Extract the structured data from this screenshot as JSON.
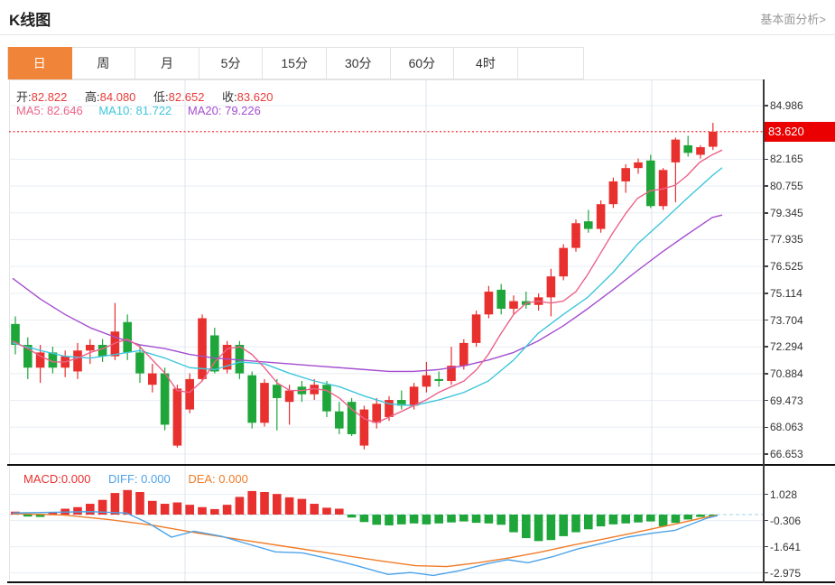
{
  "header": {
    "title": "K线图",
    "link": "基本面分析>"
  },
  "tabs": {
    "items": [
      "日",
      "周",
      "月",
      "5分",
      "15分",
      "30分",
      "60分",
      "4时"
    ],
    "selected": "日"
  },
  "overlay": {
    "ohlc": [
      {
        "label": "开:",
        "value": "82.822"
      },
      {
        "label": "高:",
        "value": "84.080"
      },
      {
        "label": "低:",
        "value": "82.652"
      },
      {
        "label": "收:",
        "value": "83.620"
      }
    ],
    "ma": [
      {
        "label": "MA5:",
        "value": "82.646"
      },
      {
        "label": "MA10:",
        "value": "81.722"
      },
      {
        "label": "MA20:",
        "value": "79.226"
      }
    ],
    "macd": [
      {
        "label": "MACD:",
        "value": "0.000"
      },
      {
        "label": "DIFF:",
        "value": "0.000"
      },
      {
        "label": "DEA:",
        "value": "0.000"
      }
    ]
  },
  "axis": {
    "main_labels": [
      "84.986",
      "82.165",
      "80.755",
      "79.345",
      "77.935",
      "76.525",
      "75.114",
      "73.704",
      "72.294",
      "70.884",
      "69.473",
      "68.063",
      "66.653"
    ],
    "current_price": "83.620",
    "macd_labels": [
      "1.028",
      "-0.306",
      "-1.641",
      "-2.975"
    ]
  },
  "colors": {
    "up": "#e8302e",
    "down": "#1fa63a",
    "tab_accent": "#f0853a",
    "ma5": "#ec6289",
    "ma10": "#3fc6dc",
    "ma20": "#a44ecf",
    "diff": "#4da3e8",
    "dea": "#f07c28",
    "value_red": "#e83a3a",
    "badge": "#ea0000",
    "grid": "#e8edf4",
    "vgrid": "#dce4ec",
    "zero_dash": "#c2e4ee",
    "price_line": "#f25050"
  },
  "chart_data": {
    "type": "candlestick+macd",
    "title": "K线图 daily candles",
    "main": {
      "ylim": [
        66.653,
        84.986
      ],
      "yticks": [
        84.986,
        83.62,
        82.165,
        80.755,
        79.345,
        77.935,
        76.525,
        75.114,
        73.704,
        72.294,
        70.884,
        69.473,
        68.063,
        66.653
      ],
      "current_price": 83.62,
      "ohlc_display": {
        "open": 82.822,
        "high": 84.08,
        "low": 82.652,
        "close": 83.62
      },
      "ma_display": {
        "ma5": 82.646,
        "ma10": 81.722,
        "ma20": 79.226
      },
      "candles": [
        [
          73.5,
          73.9,
          71.9,
          72.4
        ],
        [
          72.4,
          72.8,
          70.6,
          71.2
        ],
        [
          71.2,
          72.4,
          70.4,
          72.0
        ],
        [
          72.0,
          72.3,
          70.9,
          71.2
        ],
        [
          71.2,
          72.1,
          70.7,
          71.8
        ],
        [
          71.0,
          72.5,
          70.6,
          72.1
        ],
        [
          72.1,
          72.7,
          71.4,
          72.4
        ],
        [
          72.4,
          72.7,
          71.5,
          71.8
        ],
        [
          71.8,
          74.6,
          71.6,
          73.1
        ],
        [
          73.6,
          74.0,
          71.6,
          72.0
        ],
        [
          72.0,
          72.4,
          70.4,
          70.9
        ],
        [
          70.3,
          71.4,
          69.9,
          70.9
        ],
        [
          70.9,
          71.2,
          67.9,
          68.2
        ],
        [
          67.1,
          70.3,
          67.0,
          70.1
        ],
        [
          69.0,
          70.9,
          68.8,
          70.6
        ],
        [
          70.6,
          74.0,
          70.5,
          73.8
        ],
        [
          72.9,
          73.3,
          70.9,
          71.0
        ],
        [
          71.1,
          72.6,
          70.9,
          72.4
        ],
        [
          72.4,
          72.6,
          70.6,
          70.9
        ],
        [
          70.8,
          71.0,
          68.0,
          68.3
        ],
        [
          68.3,
          70.6,
          68.1,
          70.4
        ],
        [
          70.3,
          70.6,
          67.9,
          69.6
        ],
        [
          69.4,
          70.3,
          68.2,
          70.0
        ],
        [
          70.2,
          70.5,
          69.4,
          69.8
        ],
        [
          69.8,
          70.6,
          69.5,
          70.3
        ],
        [
          70.3,
          70.5,
          68.6,
          68.9
        ],
        [
          68.9,
          69.4,
          67.7,
          68.0
        ],
        [
          69.4,
          69.6,
          67.6,
          67.7
        ],
        [
          67.1,
          69.2,
          66.9,
          69.0
        ],
        [
          68.3,
          69.6,
          68.0,
          69.3
        ],
        [
          68.6,
          69.7,
          68.4,
          69.5
        ],
        [
          69.5,
          70.0,
          69.0,
          69.2
        ],
        [
          69.2,
          70.4,
          69.0,
          70.2
        ],
        [
          70.2,
          71.5,
          69.9,
          70.8
        ],
        [
          70.6,
          71.0,
          70.2,
          70.5
        ],
        [
          70.5,
          72.3,
          70.3,
          71.3
        ],
        [
          71.3,
          72.7,
          71.1,
          72.5
        ],
        [
          72.5,
          74.2,
          72.3,
          74.0
        ],
        [
          74.0,
          75.5,
          73.8,
          75.2
        ],
        [
          75.3,
          75.6,
          74.0,
          74.3
        ],
        [
          74.3,
          75.0,
          74.0,
          74.7
        ],
        [
          74.7,
          75.2,
          74.3,
          74.5
        ],
        [
          74.5,
          75.1,
          74.2,
          74.9
        ],
        [
          74.9,
          76.4,
          73.9,
          76.0
        ],
        [
          76.0,
          77.7,
          75.8,
          77.5
        ],
        [
          77.5,
          79.0,
          77.3,
          78.8
        ],
        [
          78.9,
          79.5,
          78.3,
          78.5
        ],
        [
          78.5,
          80.0,
          78.3,
          79.8
        ],
        [
          79.8,
          81.2,
          79.6,
          81.0
        ],
        [
          81.0,
          81.9,
          80.4,
          81.7
        ],
        [
          81.7,
          82.2,
          81.4,
          82.0
        ],
        [
          82.1,
          82.4,
          79.6,
          79.7
        ],
        [
          79.7,
          81.7,
          79.5,
          81.6
        ],
        [
          82.0,
          83.3,
          79.9,
          83.2
        ],
        [
          82.9,
          83.4,
          82.3,
          82.5
        ],
        [
          82.4,
          82.9,
          82.2,
          82.8
        ],
        [
          82.822,
          84.08,
          82.652,
          83.62
        ]
      ],
      "ma5": [
        [
          14,
          72.6
        ],
        [
          31,
          72.2
        ],
        [
          45,
          71.8
        ],
        [
          59,
          71.5
        ],
        [
          72,
          71.5
        ],
        [
          86,
          71.7
        ],
        [
          100,
          72.0
        ],
        [
          114,
          72.2
        ],
        [
          128,
          72.5
        ],
        [
          141,
          72.7
        ],
        [
          155,
          72.3
        ],
        [
          169,
          71.6
        ],
        [
          183,
          70.9
        ],
        [
          196,
          70.0
        ],
        [
          210,
          69.9
        ],
        [
          224,
          70.5
        ],
        [
          238,
          71.5
        ],
        [
          252,
          72.2
        ],
        [
          266,
          72.3
        ],
        [
          279,
          71.9
        ],
        [
          293,
          71.2
        ],
        [
          307,
          70.4
        ],
        [
          321,
          70.0
        ],
        [
          335,
          70.0
        ],
        [
          348,
          70.1
        ],
        [
          362,
          70.0
        ],
        [
          376,
          69.6
        ],
        [
          390,
          69.0
        ],
        [
          404,
          68.5
        ],
        [
          417,
          68.3
        ],
        [
          431,
          68.6
        ],
        [
          445,
          68.9
        ],
        [
          458,
          69.2
        ],
        [
          472,
          69.5
        ],
        [
          486,
          69.9
        ],
        [
          500,
          70.2
        ],
        [
          514,
          70.5
        ],
        [
          528,
          71.1
        ],
        [
          541,
          71.9
        ],
        [
          555,
          73.0
        ],
        [
          569,
          74.0
        ],
        [
          583,
          74.6
        ],
        [
          596,
          74.7
        ],
        [
          610,
          74.6
        ],
        [
          624,
          74.7
        ],
        [
          638,
          75.2
        ],
        [
          651,
          76.1
        ],
        [
          665,
          77.2
        ],
        [
          679,
          78.3
        ],
        [
          693,
          79.3
        ],
        [
          706,
          80.1
        ],
        [
          720,
          80.5
        ],
        [
          734,
          80.6
        ],
        [
          748,
          80.8
        ],
        [
          761,
          81.3
        ],
        [
          775,
          82.0
        ],
        [
          789,
          82.4
        ],
        [
          800,
          82.65
        ]
      ],
      "ma10": [
        [
          14,
          72.5
        ],
        [
          45,
          72.1
        ],
        [
          72,
          71.8
        ],
        [
          100,
          71.7
        ],
        [
          128,
          71.9
        ],
        [
          155,
          72.1
        ],
        [
          183,
          71.7
        ],
        [
          210,
          71.2
        ],
        [
          238,
          71.1
        ],
        [
          266,
          71.5
        ],
        [
          293,
          71.4
        ],
        [
          321,
          70.9
        ],
        [
          348,
          70.5
        ],
        [
          376,
          70.2
        ],
        [
          404,
          69.7
        ],
        [
          431,
          69.3
        ],
        [
          458,
          69.2
        ],
        [
          486,
          69.5
        ],
        [
          514,
          69.9
        ],
        [
          541,
          70.5
        ],
        [
          569,
          71.6
        ],
        [
          596,
          73.0
        ],
        [
          624,
          74.0
        ],
        [
          651,
          74.9
        ],
        [
          679,
          76.2
        ],
        [
          706,
          77.7
        ],
        [
          734,
          78.9
        ],
        [
          761,
          80.1
        ],
        [
          789,
          81.3
        ],
        [
          800,
          81.72
        ]
      ],
      "ma20": [
        [
          14,
          75.9
        ],
        [
          45,
          74.8
        ],
        [
          72,
          74.0
        ],
        [
          100,
          73.3
        ],
        [
          128,
          72.8
        ],
        [
          155,
          72.4
        ],
        [
          183,
          72.2
        ],
        [
          210,
          71.9
        ],
        [
          238,
          71.7
        ],
        [
          266,
          71.6
        ],
        [
          293,
          71.5
        ],
        [
          321,
          71.4
        ],
        [
          348,
          71.3
        ],
        [
          376,
          71.2
        ],
        [
          404,
          71.1
        ],
        [
          431,
          71.0
        ],
        [
          458,
          71.0
        ],
        [
          486,
          71.1
        ],
        [
          514,
          71.3
        ],
        [
          541,
          71.6
        ],
        [
          569,
          72.0
        ],
        [
          596,
          72.6
        ],
        [
          624,
          73.4
        ],
        [
          651,
          74.3
        ],
        [
          679,
          75.3
        ],
        [
          706,
          76.3
        ],
        [
          734,
          77.3
        ],
        [
          761,
          78.2
        ],
        [
          789,
          79.1
        ],
        [
          800,
          79.23
        ]
      ]
    },
    "macd": {
      "ylim": [
        -3.3,
        1.4
      ],
      "yticks": [
        1.028,
        -0.306,
        -1.641,
        -2.975
      ],
      "display": {
        "macd": 0.0,
        "diff": 0.0,
        "dea": 0.0
      },
      "histogram": [
        0.15,
        -0.1,
        -0.12,
        0.12,
        0.3,
        0.38,
        0.55,
        0.75,
        1.1,
        1.25,
        1.15,
        0.7,
        0.55,
        0.62,
        0.5,
        0.38,
        0.28,
        0.5,
        0.9,
        1.2,
        1.15,
        1.05,
        0.88,
        0.8,
        0.55,
        0.35,
        0.3,
        -0.15,
        -0.38,
        -0.52,
        -0.55,
        -0.5,
        -0.45,
        -0.5,
        -0.45,
        -0.4,
        -0.35,
        -0.42,
        -0.45,
        -0.52,
        -0.9,
        -1.2,
        -1.35,
        -1.3,
        -1.1,
        -0.9,
        -0.75,
        -0.6,
        -0.5,
        -0.45,
        -0.4,
        -0.35,
        -0.6,
        -0.42,
        -0.25,
        -0.12,
        -0.05
      ],
      "diff": [
        [
          14,
          0.08
        ],
        [
          60,
          0.12
        ],
        [
          100,
          0.15
        ],
        [
          140,
          0.08
        ],
        [
          165,
          -0.45
        ],
        [
          190,
          -1.15
        ],
        [
          215,
          -0.85
        ],
        [
          245,
          -1.1
        ],
        [
          275,
          -1.5
        ],
        [
          305,
          -1.9
        ],
        [
          335,
          -1.95
        ],
        [
          365,
          -2.25
        ],
        [
          395,
          -2.6
        ],
        [
          430,
          -3.05
        ],
        [
          455,
          -2.95
        ],
        [
          480,
          -3.1
        ],
        [
          510,
          -2.85
        ],
        [
          540,
          -2.5
        ],
        [
          562,
          -2.3
        ],
        [
          585,
          -2.45
        ],
        [
          612,
          -2.15
        ],
        [
          640,
          -1.75
        ],
        [
          668,
          -1.45
        ],
        [
          695,
          -1.15
        ],
        [
          722,
          -0.95
        ],
        [
          748,
          -0.8
        ],
        [
          768,
          -0.45
        ],
        [
          782,
          -0.2
        ],
        [
          795,
          -0.05
        ]
      ],
      "dea": [
        [
          14,
          0.05
        ],
        [
          70,
          -0.02
        ],
        [
          120,
          -0.25
        ],
        [
          170,
          -0.55
        ],
        [
          220,
          -0.95
        ],
        [
          270,
          -1.3
        ],
        [
          320,
          -1.65
        ],
        [
          370,
          -2.0
        ],
        [
          420,
          -2.35
        ],
        [
          460,
          -2.6
        ],
        [
          495,
          -2.65
        ],
        [
          530,
          -2.45
        ],
        [
          565,
          -2.2
        ],
        [
          600,
          -1.9
        ],
        [
          635,
          -1.55
        ],
        [
          668,
          -1.25
        ],
        [
          700,
          -0.95
        ],
        [
          730,
          -0.65
        ],
        [
          758,
          -0.38
        ],
        [
          780,
          -0.15
        ],
        [
          795,
          -0.03
        ]
      ]
    }
  }
}
